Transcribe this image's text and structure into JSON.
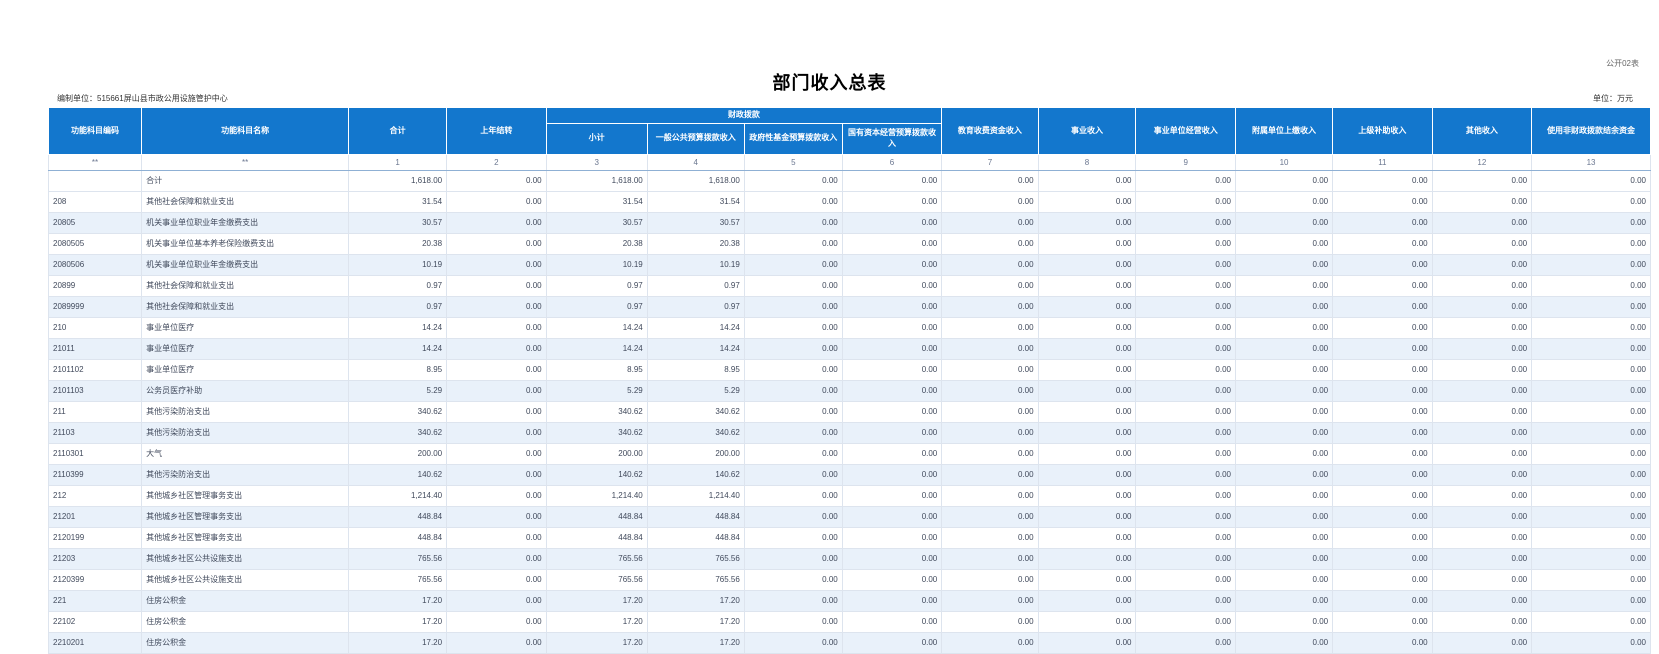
{
  "page": {
    "corner_label": "公开02表",
    "title": "部门收入总表",
    "prepared_by": "编制单位：515661屏山县市政公用设施管护中心",
    "unit_note": "单位：万元"
  },
  "colors": {
    "header_bg": "#1377cd",
    "row_alt_bg": "#e9f1fa"
  },
  "table": {
    "header": {
      "col_code": "功能科目编码",
      "col_name": "功能科目名称",
      "col_total": "合计",
      "col_prev_year": "上年结转",
      "group_fiscal": "财政拨款",
      "col_subtotal": "小计",
      "col_general_budget": "一般公共预算拨款收入",
      "col_gov_fund": "政府性基金预算拨款收入",
      "col_state_capital": "国有资本经营预算拨款收入",
      "col_edu_fee": "教育收费资金收入",
      "col_business_income": "事业收入",
      "col_operating_income": "事业单位经营收入",
      "col_affiliate_income": "附属单位上缴收入",
      "col_superior_subsidy": "上级补助收入",
      "col_other_income": "其他收入",
      "col_nonfiscal_balance": "使用非财政拨款结余资金"
    },
    "index_row": [
      "**",
      "**",
      "1",
      "2",
      "3",
      "4",
      "5",
      "6",
      "7",
      "8",
      "9",
      "10",
      "11",
      "12",
      "13"
    ],
    "rows": [
      {
        "code": "",
        "name": "合计",
        "values": [
          "1,618.00",
          "0.00",
          "1,618.00",
          "1,618.00",
          "0.00",
          "0.00",
          "0.00",
          "0.00",
          "0.00",
          "0.00",
          "0.00",
          "0.00",
          "0.00"
        ]
      },
      {
        "code": "208",
        "name": "其他社会保障和就业支出",
        "values": [
          "31.54",
          "0.00",
          "31.54",
          "31.54",
          "0.00",
          "0.00",
          "0.00",
          "0.00",
          "0.00",
          "0.00",
          "0.00",
          "0.00",
          "0.00"
        ]
      },
      {
        "code": "20805",
        "name": "机关事业单位职业年金缴费支出",
        "values": [
          "30.57",
          "0.00",
          "30.57",
          "30.57",
          "0.00",
          "0.00",
          "0.00",
          "0.00",
          "0.00",
          "0.00",
          "0.00",
          "0.00",
          "0.00"
        ]
      },
      {
        "code": "2080505",
        "name": "机关事业单位基本养老保险缴费支出",
        "values": [
          "20.38",
          "0.00",
          "20.38",
          "20.38",
          "0.00",
          "0.00",
          "0.00",
          "0.00",
          "0.00",
          "0.00",
          "0.00",
          "0.00",
          "0.00"
        ]
      },
      {
        "code": "2080506",
        "name": "机关事业单位职业年金缴费支出",
        "values": [
          "10.19",
          "0.00",
          "10.19",
          "10.19",
          "0.00",
          "0.00",
          "0.00",
          "0.00",
          "0.00",
          "0.00",
          "0.00",
          "0.00",
          "0.00"
        ]
      },
      {
        "code": "20899",
        "name": "其他社会保障和就业支出",
        "values": [
          "0.97",
          "0.00",
          "0.97",
          "0.97",
          "0.00",
          "0.00",
          "0.00",
          "0.00",
          "0.00",
          "0.00",
          "0.00",
          "0.00",
          "0.00"
        ]
      },
      {
        "code": "2089999",
        "name": "其他社会保障和就业支出",
        "values": [
          "0.97",
          "0.00",
          "0.97",
          "0.97",
          "0.00",
          "0.00",
          "0.00",
          "0.00",
          "0.00",
          "0.00",
          "0.00",
          "0.00",
          "0.00"
        ]
      },
      {
        "code": "210",
        "name": "事业单位医疗",
        "values": [
          "14.24",
          "0.00",
          "14.24",
          "14.24",
          "0.00",
          "0.00",
          "0.00",
          "0.00",
          "0.00",
          "0.00",
          "0.00",
          "0.00",
          "0.00"
        ]
      },
      {
        "code": "21011",
        "name": "事业单位医疗",
        "values": [
          "14.24",
          "0.00",
          "14.24",
          "14.24",
          "0.00",
          "0.00",
          "0.00",
          "0.00",
          "0.00",
          "0.00",
          "0.00",
          "0.00",
          "0.00"
        ]
      },
      {
        "code": "2101102",
        "name": "事业单位医疗",
        "values": [
          "8.95",
          "0.00",
          "8.95",
          "8.95",
          "0.00",
          "0.00",
          "0.00",
          "0.00",
          "0.00",
          "0.00",
          "0.00",
          "0.00",
          "0.00"
        ]
      },
      {
        "code": "2101103",
        "name": "公务员医疗补助",
        "values": [
          "5.29",
          "0.00",
          "5.29",
          "5.29",
          "0.00",
          "0.00",
          "0.00",
          "0.00",
          "0.00",
          "0.00",
          "0.00",
          "0.00",
          "0.00"
        ]
      },
      {
        "code": "211",
        "name": "其他污染防治支出",
        "values": [
          "340.62",
          "0.00",
          "340.62",
          "340.62",
          "0.00",
          "0.00",
          "0.00",
          "0.00",
          "0.00",
          "0.00",
          "0.00",
          "0.00",
          "0.00"
        ]
      },
      {
        "code": "21103",
        "name": "其他污染防治支出",
        "values": [
          "340.62",
          "0.00",
          "340.62",
          "340.62",
          "0.00",
          "0.00",
          "0.00",
          "0.00",
          "0.00",
          "0.00",
          "0.00",
          "0.00",
          "0.00"
        ]
      },
      {
        "code": "2110301",
        "name": "大气",
        "values": [
          "200.00",
          "0.00",
          "200.00",
          "200.00",
          "0.00",
          "0.00",
          "0.00",
          "0.00",
          "0.00",
          "0.00",
          "0.00",
          "0.00",
          "0.00"
        ]
      },
      {
        "code": "2110399",
        "name": "其他污染防治支出",
        "values": [
          "140.62",
          "0.00",
          "140.62",
          "140.62",
          "0.00",
          "0.00",
          "0.00",
          "0.00",
          "0.00",
          "0.00",
          "0.00",
          "0.00",
          "0.00"
        ]
      },
      {
        "code": "212",
        "name": "其他城乡社区管理事务支出",
        "values": [
          "1,214.40",
          "0.00",
          "1,214.40",
          "1,214.40",
          "0.00",
          "0.00",
          "0.00",
          "0.00",
          "0.00",
          "0.00",
          "0.00",
          "0.00",
          "0.00"
        ]
      },
      {
        "code": "21201",
        "name": "其他城乡社区管理事务支出",
        "values": [
          "448.84",
          "0.00",
          "448.84",
          "448.84",
          "0.00",
          "0.00",
          "0.00",
          "0.00",
          "0.00",
          "0.00",
          "0.00",
          "0.00",
          "0.00"
        ]
      },
      {
        "code": "2120199",
        "name": "其他城乡社区管理事务支出",
        "values": [
          "448.84",
          "0.00",
          "448.84",
          "448.84",
          "0.00",
          "0.00",
          "0.00",
          "0.00",
          "0.00",
          "0.00",
          "0.00",
          "0.00",
          "0.00"
        ]
      },
      {
        "code": "21203",
        "name": "其他城乡社区公共设施支出",
        "values": [
          "765.56",
          "0.00",
          "765.56",
          "765.56",
          "0.00",
          "0.00",
          "0.00",
          "0.00",
          "0.00",
          "0.00",
          "0.00",
          "0.00",
          "0.00"
        ]
      },
      {
        "code": "2120399",
        "name": "其他城乡社区公共设施支出",
        "values": [
          "765.56",
          "0.00",
          "765.56",
          "765.56",
          "0.00",
          "0.00",
          "0.00",
          "0.00",
          "0.00",
          "0.00",
          "0.00",
          "0.00",
          "0.00"
        ]
      },
      {
        "code": "221",
        "name": "住房公积金",
        "values": [
          "17.20",
          "0.00",
          "17.20",
          "17.20",
          "0.00",
          "0.00",
          "0.00",
          "0.00",
          "0.00",
          "0.00",
          "0.00",
          "0.00",
          "0.00"
        ]
      },
      {
        "code": "22102",
        "name": "住房公积金",
        "values": [
          "17.20",
          "0.00",
          "17.20",
          "17.20",
          "0.00",
          "0.00",
          "0.00",
          "0.00",
          "0.00",
          "0.00",
          "0.00",
          "0.00",
          "0.00"
        ]
      },
      {
        "code": "2210201",
        "name": "住房公积金",
        "values": [
          "17.20",
          "0.00",
          "17.20",
          "17.20",
          "0.00",
          "0.00",
          "0.00",
          "0.00",
          "0.00",
          "0.00",
          "0.00",
          "0.00",
          "0.00"
        ]
      }
    ]
  }
}
